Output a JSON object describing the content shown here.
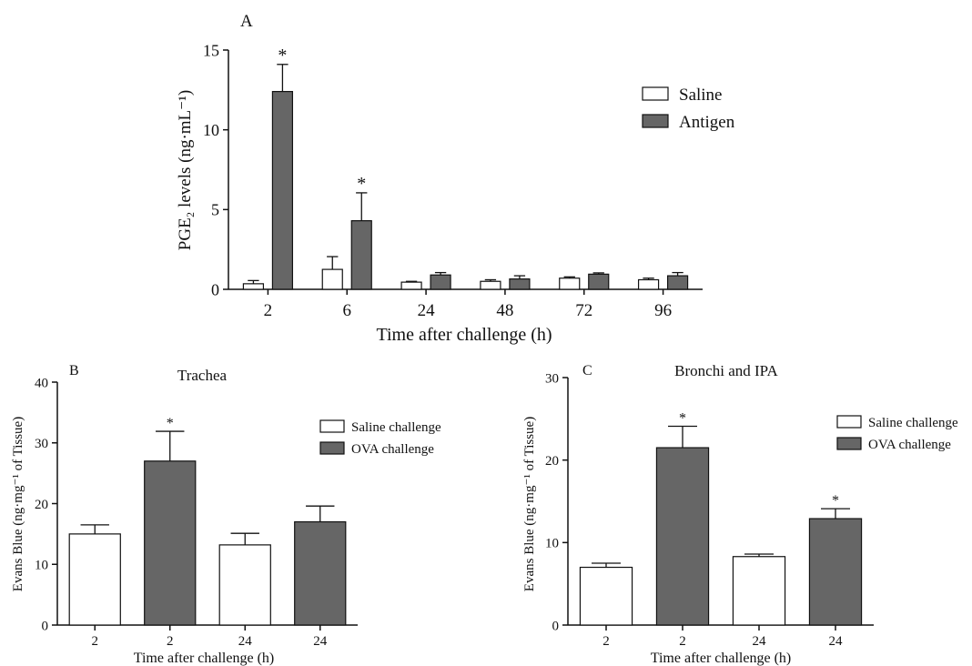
{
  "colors": {
    "saline": "#ffffff",
    "antigen": "#666666",
    "stroke": "#111111"
  },
  "chart_data": [
    {
      "panel_label": "A",
      "type": "bar",
      "title": "",
      "xlabel": "Time after challenge (h)",
      "ylabel": "PGE₂ levels (ng·mL⁻¹)",
      "ylim": [
        0,
        15
      ],
      "yticks": [
        0,
        5,
        10,
        15
      ],
      "categories": [
        "2",
        "6",
        "24",
        "48",
        "72",
        "96"
      ],
      "series": [
        {
          "name": "Saline",
          "color": "#ffffff",
          "values": [
            0.35,
            1.25,
            0.45,
            0.5,
            0.7,
            0.6
          ],
          "errors": [
            0.2,
            0.8,
            0.05,
            0.1,
            0.08,
            0.1
          ],
          "marks": [
            "",
            "",
            "",
            "",
            "",
            ""
          ]
        },
        {
          "name": "Antigen",
          "color": "#666666",
          "values": [
            12.4,
            4.3,
            0.9,
            0.65,
            0.95,
            0.85
          ],
          "errors": [
            1.7,
            1.75,
            0.15,
            0.2,
            0.08,
            0.2
          ],
          "marks": [
            "*",
            "*",
            "",
            "",
            "",
            ""
          ]
        }
      ],
      "legend": "right"
    },
    {
      "panel_label": "B",
      "type": "bar",
      "title": "Trachea",
      "xlabel": "Time after challenge (h)",
      "ylabel": "Evans Blue (ng·mg⁻¹ of Tissue)",
      "ylim": [
        0,
        40
      ],
      "yticks": [
        0,
        10,
        20,
        30,
        40
      ],
      "categories": [
        "2",
        "2",
        "24",
        "24"
      ],
      "values": [
        15,
        27,
        13.2,
        17
      ],
      "errors": [
        1.5,
        4.9,
        1.9,
        2.6
      ],
      "bar_series": [
        "Saline challenge",
        "OVA challenge",
        "Saline challenge",
        "OVA challenge"
      ],
      "marks": [
        "",
        "*",
        "",
        ""
      ],
      "legend_entries": [
        {
          "name": "Saline challenge",
          "color": "#ffffff"
        },
        {
          "name": "OVA challenge",
          "color": "#666666"
        }
      ],
      "legend": "top-right"
    },
    {
      "panel_label": "C",
      "type": "bar",
      "title": "Bronchi and IPA",
      "xlabel": "Time after challenge (h)",
      "ylabel": "Evans Blue (ng·mg⁻¹ of Tissue)",
      "ylim": [
        0,
        30
      ],
      "yticks": [
        0,
        10,
        20,
        30
      ],
      "categories": [
        "2",
        "2",
        "24",
        "24"
      ],
      "values": [
        7,
        21.5,
        8.3,
        12.9
      ],
      "errors": [
        0.5,
        2.6,
        0.3,
        1.2
      ],
      "bar_series": [
        "Saline challenge",
        "OVA challenge",
        "Saline challenge",
        "OVA challenge"
      ],
      "marks": [
        "",
        "*",
        "",
        "*"
      ],
      "legend_entries": [
        {
          "name": "Saline challenge",
          "color": "#ffffff"
        },
        {
          "name": "OVA challenge",
          "color": "#666666"
        }
      ],
      "legend": "top-right"
    }
  ]
}
